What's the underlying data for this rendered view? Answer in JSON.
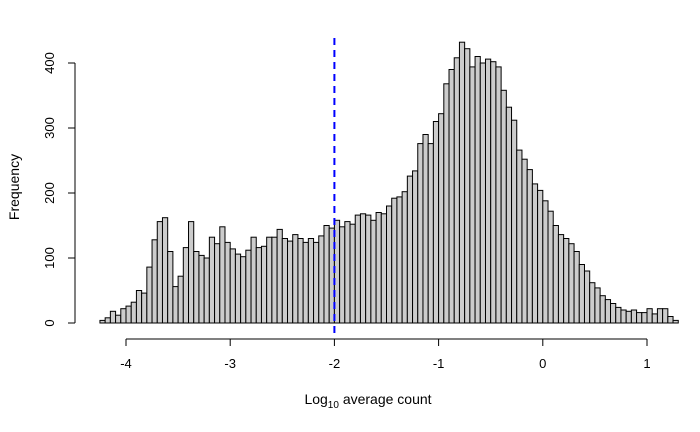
{
  "chart_data": {
    "type": "bar",
    "title": "",
    "xlabel": "average count",
    "xlabel_prefix": "Log",
    "xlabel_subscript": "10",
    "ylabel": "Frequency",
    "xlim": [
      -4.5,
      1.0
    ],
    "ylim": [
      0,
      420
    ],
    "x_ticks": [
      -4,
      -3,
      -2,
      -1,
      0,
      1
    ],
    "y_ticks": [
      0,
      100,
      200,
      300,
      400
    ],
    "bin_start": -4.25,
    "bin_width": 0.05,
    "values": [
      4,
      8,
      18,
      12,
      22,
      26,
      32,
      50,
      46,
      86,
      128,
      156,
      162,
      110,
      56,
      72,
      116,
      156,
      110,
      104,
      100,
      132,
      122,
      148,
      124,
      114,
      106,
      102,
      112,
      132,
      116,
      118,
      132,
      132,
      144,
      130,
      126,
      136,
      130,
      124,
      130,
      124,
      134,
      150,
      146,
      158,
      148,
      156,
      152,
      166,
      168,
      166,
      158,
      170,
      168,
      180,
      192,
      194,
      202,
      226,
      234,
      276,
      290,
      276,
      310,
      322,
      368,
      390,
      408,
      432,
      422,
      394,
      410,
      400,
      406,
      402,
      394,
      358,
      332,
      312,
      266,
      252,
      236,
      214,
      204,
      188,
      172,
      150,
      136,
      130,
      122,
      110,
      90,
      80,
      62,
      54,
      42,
      36,
      30,
      24,
      20,
      18,
      20,
      16,
      16,
      22,
      14,
      22,
      22,
      10,
      4
    ],
    "reference_line": {
      "x": -2,
      "color": "#0000ff",
      "style": "dashed"
    },
    "bar_fill": "#cccccc",
    "bar_stroke": "#000000"
  }
}
